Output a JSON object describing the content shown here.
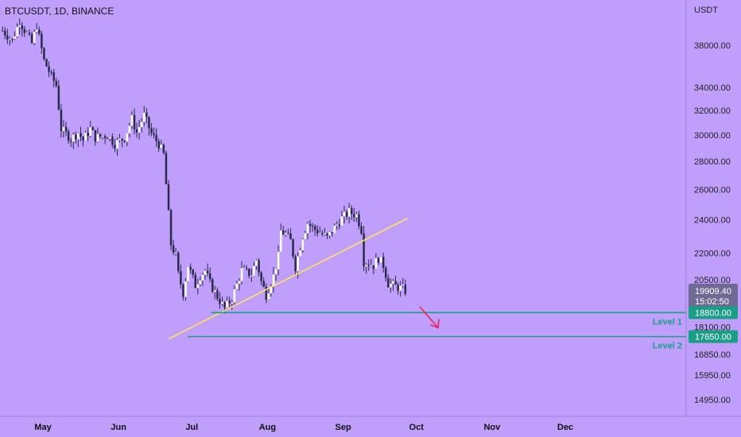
{
  "symbol_label": "BTCUSDT, 1D, BINANCE",
  "currency": "USDT",
  "colors": {
    "background": "#bf9ffb",
    "candle_up": "#ffffff",
    "candle_down": "#2a2a4e",
    "trendline": "#ffe45c",
    "level": "#1a9e86",
    "arrow": "#e8245f",
    "last_price_bg": "#6f6a93"
  },
  "chart_data": {
    "type": "candlestick",
    "symbol": "BTCUSDT",
    "interval": "1D",
    "exchange": "BINANCE",
    "y_scale": "log",
    "ylim": [
      14300,
      41500
    ],
    "y_ticks": [
      "38000.00",
      "34000.00",
      "32000.00",
      "30000.00",
      "28000.00",
      "26000.00",
      "24000.00",
      "22000.00",
      "20500.00",
      "18100.00",
      "16850.00",
      "15950.00",
      "14950.00"
    ],
    "x_ticks": [
      "May",
      "Jun",
      "Jul",
      "Aug",
      "Sep",
      "Oct",
      "Nov",
      "Dec"
    ],
    "price_path": [
      [
        0,
        39500
      ],
      [
        4,
        38500
      ],
      [
        7,
        40500
      ],
      [
        12,
        38200
      ],
      [
        14,
        40000
      ],
      [
        17,
        36500
      ],
      [
        20,
        35000
      ],
      [
        22,
        34200
      ],
      [
        24,
        30500
      ],
      [
        28,
        29700
      ],
      [
        31,
        30200
      ],
      [
        33,
        29600
      ],
      [
        36,
        30500
      ],
      [
        38,
        29800
      ],
      [
        43,
        30000
      ],
      [
        46,
        29300
      ],
      [
        50,
        29800
      ],
      [
        53,
        31300
      ],
      [
        55,
        30200
      ],
      [
        58,
        31600
      ],
      [
        61,
        30100
      ],
      [
        64,
        29300
      ],
      [
        66,
        28500
      ],
      [
        69,
        22500
      ],
      [
        71,
        21800
      ],
      [
        72,
        20800
      ],
      [
        74,
        19800
      ],
      [
        76,
        21300
      ],
      [
        79,
        20200
      ],
      [
        81,
        20700
      ],
      [
        83,
        21000
      ],
      [
        85,
        20300
      ],
      [
        88,
        19600
      ],
      [
        91,
        19000
      ],
      [
        94,
        19500
      ],
      [
        98,
        21000
      ],
      [
        102,
        20800
      ],
      [
        104,
        21600
      ],
      [
        106,
        20400
      ],
      [
        108,
        19700
      ],
      [
        111,
        20700
      ],
      [
        113,
        21800
      ],
      [
        114,
        23300
      ],
      [
        116,
        23100
      ],
      [
        118,
        22700
      ],
      [
        120,
        21200
      ],
      [
        123,
        23000
      ],
      [
        125,
        23800
      ],
      [
        127,
        23500
      ],
      [
        129,
        23300
      ],
      [
        133,
        22900
      ],
      [
        136,
        23500
      ],
      [
        139,
        24100
      ],
      [
        142,
        24500
      ],
      [
        145,
        24300
      ],
      [
        147,
        23400
      ],
      [
        148,
        21500
      ],
      [
        150,
        21400
      ],
      [
        152,
        21300
      ],
      [
        154,
        21700
      ],
      [
        156,
        21300
      ],
      [
        158,
        20300
      ],
      [
        162,
        20100
      ],
      [
        164,
        20000
      ],
      [
        165,
        19909
      ]
    ],
    "last_price": "19909.40",
    "countdown": "15:02:50",
    "levels": [
      {
        "price": 18800,
        "tag": "18800.00",
        "label": "Level 1"
      },
      {
        "price": 17650,
        "tag": "17650.00",
        "label": "Level 2"
      }
    ],
    "trendline": [
      [
        49,
        17550
      ],
      [
        124,
        24100
      ]
    ],
    "arrow": {
      "from": [
        133,
        19100
      ],
      "to": [
        138,
        17950
      ]
    }
  }
}
